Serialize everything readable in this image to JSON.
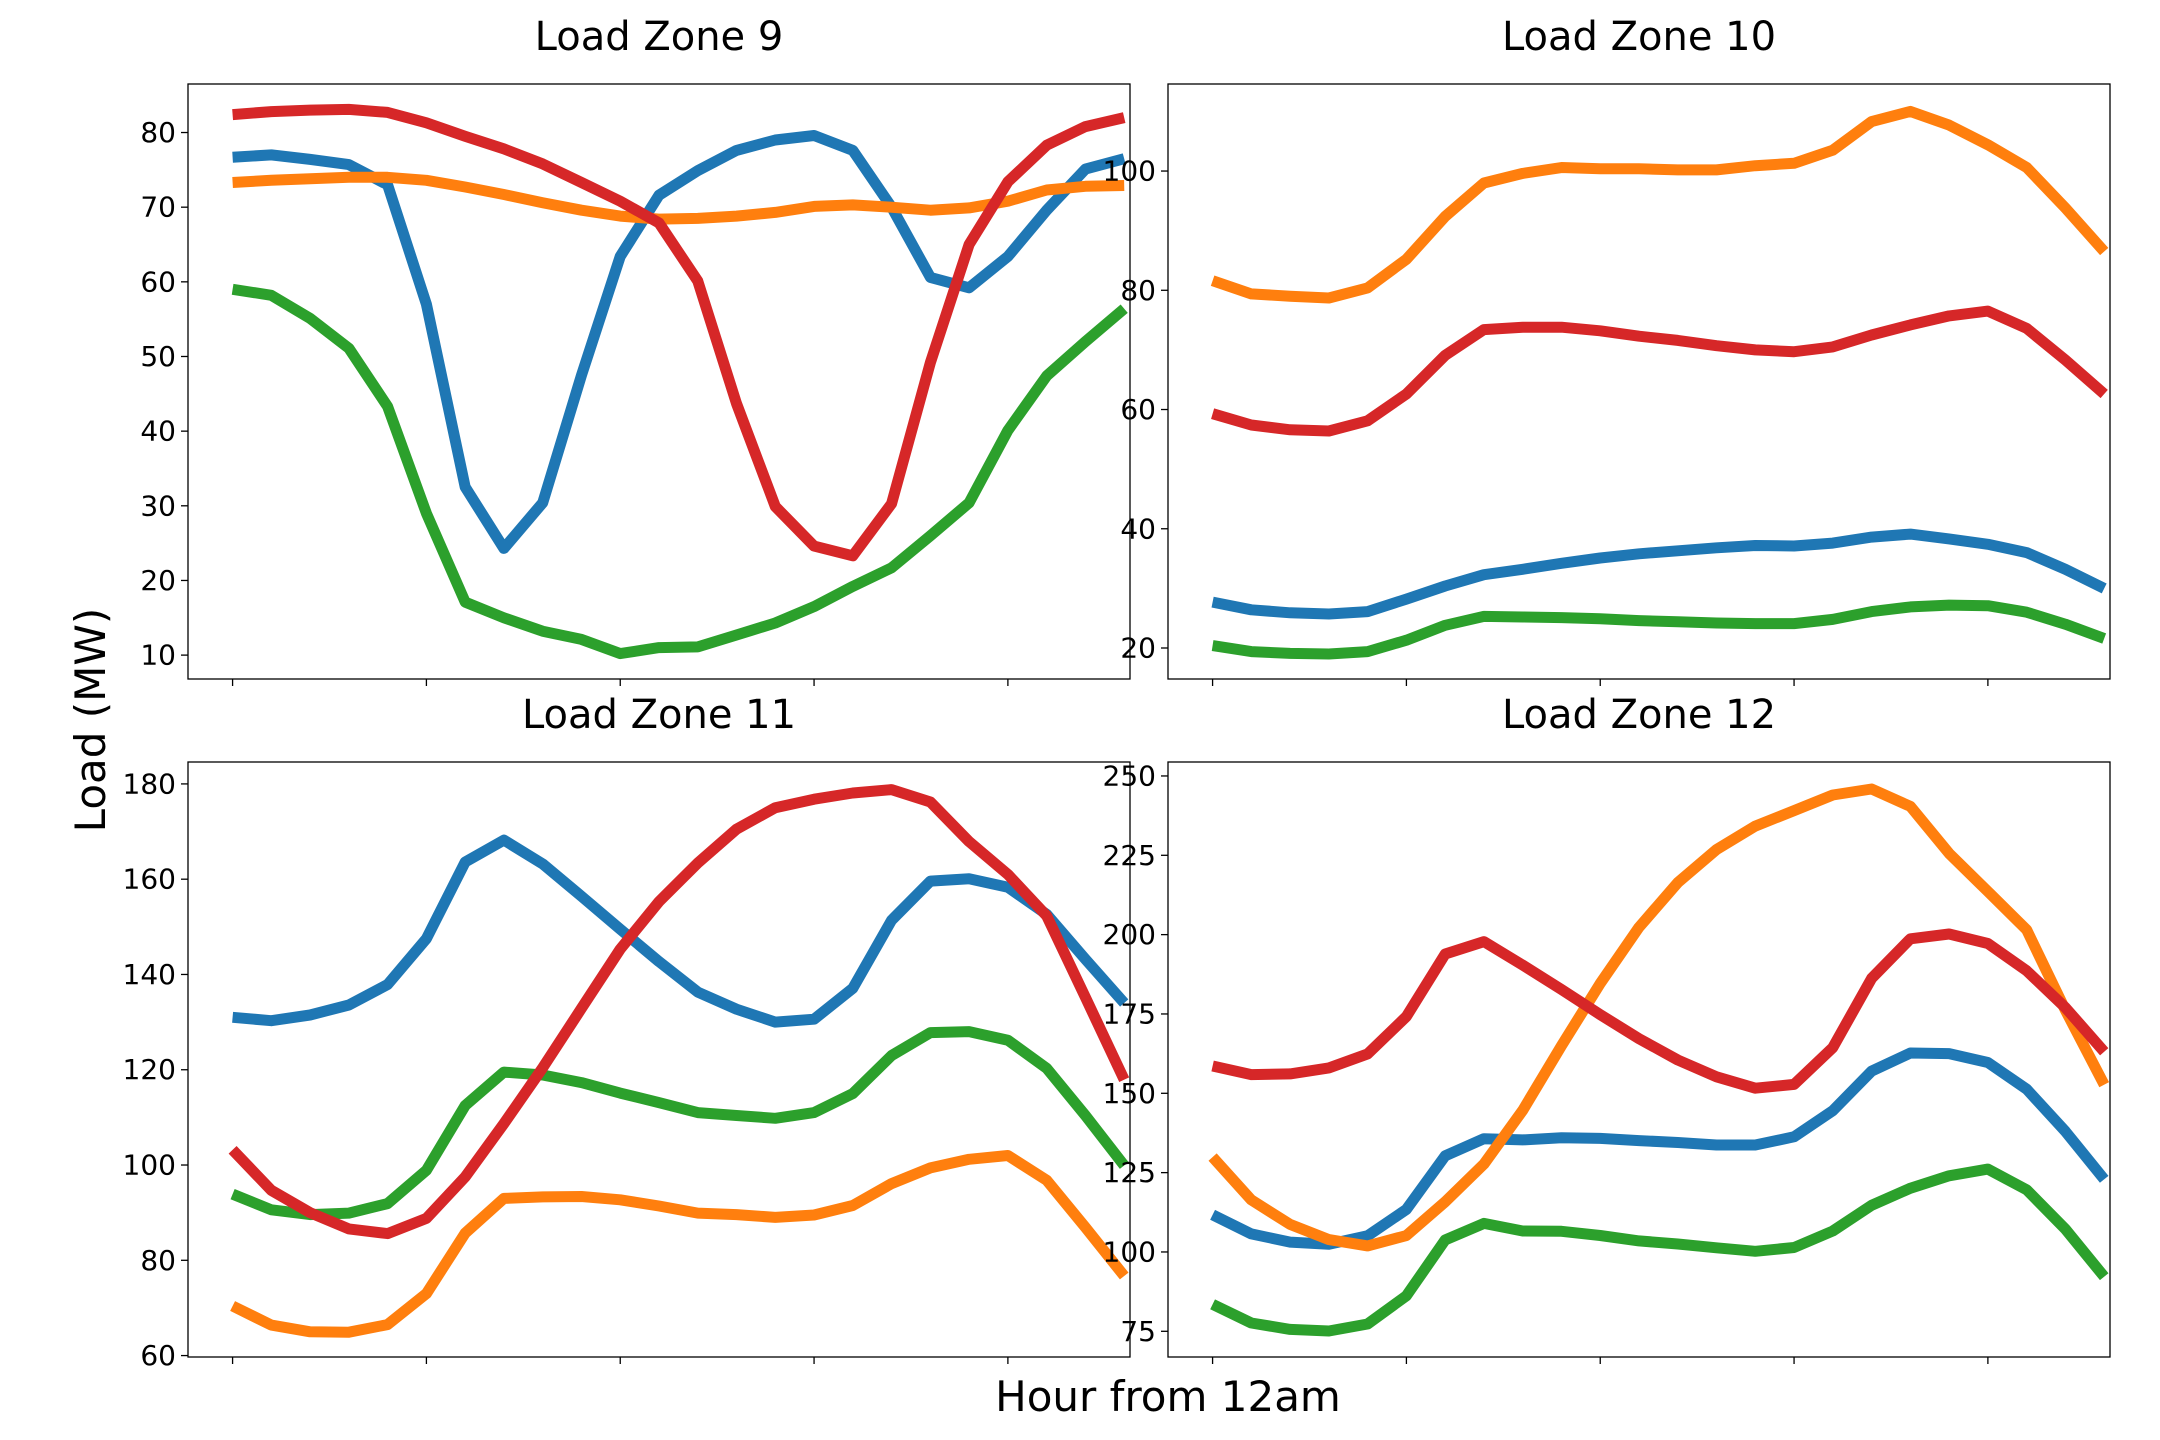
{
  "figure": {
    "ylabel": "Load (MW)",
    "xlabel": "Hour from 12am"
  },
  "colors": {
    "blue": "#1f77b4",
    "orange": "#ff7f0e",
    "green": "#2ca02c",
    "red": "#d62728"
  },
  "chart_data": [
    {
      "type": "line",
      "title": "Load Zone 9",
      "x": [
        0,
        1,
        2,
        3,
        4,
        5,
        6,
        7,
        8,
        9,
        10,
        11,
        12,
        13,
        14,
        15,
        16,
        17,
        18,
        19,
        20,
        21,
        22,
        23
      ],
      "x_tick_labels": [],
      "ylim": [
        6.8,
        86.5
      ],
      "yticks": [
        10,
        20,
        30,
        40,
        50,
        60,
        70,
        80
      ],
      "series": [
        {
          "color": "blue",
          "values": [
            76.7,
            77,
            76.4,
            75.7,
            73,
            57,
            32.5,
            24.3,
            30.4,
            47.5,
            63.4,
            71.6,
            74.9,
            77.6,
            79,
            79.6,
            77.6,
            70,
            60.6,
            59.2,
            63.4,
            69.6,
            75.1,
            76.5
          ]
        },
        {
          "color": "orange",
          "values": [
            73.3,
            73.6,
            73.8,
            74,
            74,
            73.6,
            72.7,
            71.7,
            70.6,
            69.6,
            68.8,
            68.4,
            68.5,
            68.8,
            69.3,
            70.1,
            70.3,
            70,
            69.6,
            69.9,
            70.8,
            72.3,
            72.8,
            72.9
          ]
        },
        {
          "color": "green",
          "values": [
            59,
            58.2,
            55.1,
            51.1,
            43.3,
            29,
            17.1,
            15,
            13.2,
            12.1,
            10.2,
            11,
            11.1,
            12.7,
            14.3,
            16.5,
            19.2,
            21.7,
            26,
            30.4,
            40.1,
            47.4,
            52,
            56.4
          ]
        },
        {
          "color": "red",
          "values": [
            82.4,
            82.8,
            83,
            83.1,
            82.7,
            81.3,
            79.5,
            77.8,
            75.8,
            73.3,
            70.8,
            67.9,
            60.1,
            43.7,
            29.9,
            24.6,
            23.3,
            30.3,
            49.2,
            65,
            73.4,
            78.3,
            80.8,
            82
          ]
        }
      ]
    },
    {
      "type": "line",
      "title": "Load Zone 10",
      "x": [
        0,
        1,
        2,
        3,
        4,
        5,
        6,
        7,
        8,
        9,
        10,
        11,
        12,
        13,
        14,
        15,
        16,
        17,
        18,
        19,
        20,
        21,
        22,
        23
      ],
      "x_tick_labels": [],
      "ylim": [
        14.8,
        114.6
      ],
      "yticks": [
        20,
        40,
        60,
        80,
        100
      ],
      "series": [
        {
          "color": "blue",
          "values": [
            27.7,
            26.4,
            25.9,
            25.7,
            26.1,
            28.2,
            30.4,
            32.3,
            33.2,
            34.2,
            35.1,
            35.8,
            36.3,
            36.8,
            37.2,
            37.1,
            37.6,
            38.6,
            39.1,
            38.3,
            37.4,
            36,
            33.2,
            30
          ]
        },
        {
          "color": "orange",
          "values": [
            81.6,
            79.4,
            79,
            78.7,
            80.4,
            85.2,
            92.4,
            98,
            99.6,
            100.6,
            100.4,
            100.4,
            100.2,
            100.2,
            100.9,
            101.3,
            103.5,
            108.3,
            110,
            107.7,
            104.4,
            100.6,
            93.8,
            86.5
          ]
        },
        {
          "color": "green",
          "values": [
            20.4,
            19.4,
            19.1,
            19,
            19.4,
            21.3,
            23.8,
            25.3,
            25.2,
            25.1,
            24.9,
            24.6,
            24.4,
            24.2,
            24.1,
            24.1,
            24.8,
            26.1,
            26.9,
            27.2,
            27.1,
            26,
            24,
            21.6
          ]
        },
        {
          "color": "red",
          "values": [
            59.3,
            57.4,
            56.6,
            56.4,
            58.1,
            62.6,
            69.1,
            73.4,
            73.8,
            73.8,
            73.2,
            72.3,
            71.6,
            70.7,
            70,
            69.7,
            70.5,
            72.5,
            74.2,
            75.7,
            76.5,
            73.6,
            68.3,
            62.6
          ]
        }
      ]
    },
    {
      "type": "line",
      "title": "Load Zone 11",
      "x": [
        0,
        1,
        2,
        3,
        4,
        5,
        6,
        7,
        8,
        9,
        10,
        11,
        12,
        13,
        14,
        15,
        16,
        17,
        18,
        19,
        20,
        21,
        22,
        23
      ],
      "x_tick_labels": [],
      "ylim": [
        59.7,
        184.6
      ],
      "yticks": [
        60,
        80,
        100,
        120,
        140,
        160,
        180
      ],
      "series": [
        {
          "color": "blue",
          "values": [
            131,
            130.3,
            131.5,
            133.6,
            137.9,
            147.5,
            163.6,
            168.2,
            163.2,
            156.4,
            149.5,
            142.7,
            136.3,
            132.7,
            130,
            130.6,
            137.1,
            151.4,
            159.6,
            160.1,
            158.3,
            152.6,
            143.2,
            134
          ]
        },
        {
          "color": "orange",
          "values": [
            70.4,
            66.4,
            65,
            64.9,
            66.5,
            73,
            85.7,
            93,
            93.3,
            93.4,
            92.7,
            91.4,
            89.9,
            89.6,
            89,
            89.5,
            91.5,
            96.1,
            99.4,
            101.2,
            102,
            96.8,
            86.9,
            76.7
          ]
        },
        {
          "color": "green",
          "values": [
            93.9,
            90.6,
            89.6,
            89.9,
            91.9,
            98.9,
            112.5,
            119.5,
            118.9,
            117.3,
            115.1,
            113.1,
            111,
            110.4,
            109.8,
            111,
            115,
            123,
            127.8,
            128,
            126.2,
            120.3,
            110.4,
            99.9
          ]
        },
        {
          "color": "red",
          "values": [
            103.2,
            94.7,
            90,
            86.6,
            85.6,
            88.8,
            97.5,
            108.7,
            120.4,
            132.9,
            145.3,
            155.3,
            163.4,
            170.5,
            175,
            176.8,
            178.1,
            178.8,
            176.2,
            167.9,
            161,
            152.3,
            135.2,
            117.9
          ]
        }
      ]
    },
    {
      "type": "line",
      "title": "Load Zone 12",
      "x": [
        0,
        1,
        2,
        3,
        4,
        5,
        6,
        7,
        8,
        9,
        10,
        11,
        12,
        13,
        14,
        15,
        16,
        17,
        18,
        19,
        20,
        21,
        22,
        23
      ],
      "x_tick_labels": [],
      "ylim": [
        66.9,
        254.4
      ],
      "yticks": [
        75,
        100,
        125,
        150,
        175,
        200,
        225,
        250
      ],
      "series": [
        {
          "color": "blue",
          "values": [
            111.7,
            105.7,
            103.1,
            102.4,
            105.1,
            113.4,
            130.3,
            135.7,
            135.3,
            136,
            135.8,
            135.1,
            134.5,
            133.7,
            133.7,
            136.3,
            144.5,
            157,
            162.7,
            162.5,
            159.7,
            151.3,
            138,
            122.9
          ]
        },
        {
          "color": "orange",
          "values": [
            129.9,
            116.4,
            108.7,
            103.9,
            101.9,
            105.2,
            115.8,
            127.7,
            144.6,
            165,
            184.6,
            202.3,
            216.4,
            226.8,
            234.2,
            239.1,
            244,
            245.9,
            240.4,
            225.6,
            213.6,
            201.5,
            176.2,
            152.7
          ]
        },
        {
          "color": "green",
          "values": [
            83.5,
            77.6,
            75.6,
            75.1,
            77.3,
            86.2,
            103.8,
            109,
            106.6,
            106.5,
            105.2,
            103.5,
            102.5,
            101.3,
            100.2,
            101.4,
            106.6,
            114.7,
            120.1,
            124,
            126.1,
            119.6,
            107.2,
            92.2
          ]
        },
        {
          "color": "red",
          "values": [
            158.6,
            155.9,
            156.1,
            158,
            162.4,
            174.2,
            193.9,
            197.8,
            190.4,
            182.7,
            174.8,
            167.2,
            160.5,
            155.2,
            151.6,
            152.8,
            164.4,
            186.2,
            198.7,
            200.2,
            197.2,
            188.6,
            177,
            163.1
          ]
        }
      ]
    }
  ]
}
